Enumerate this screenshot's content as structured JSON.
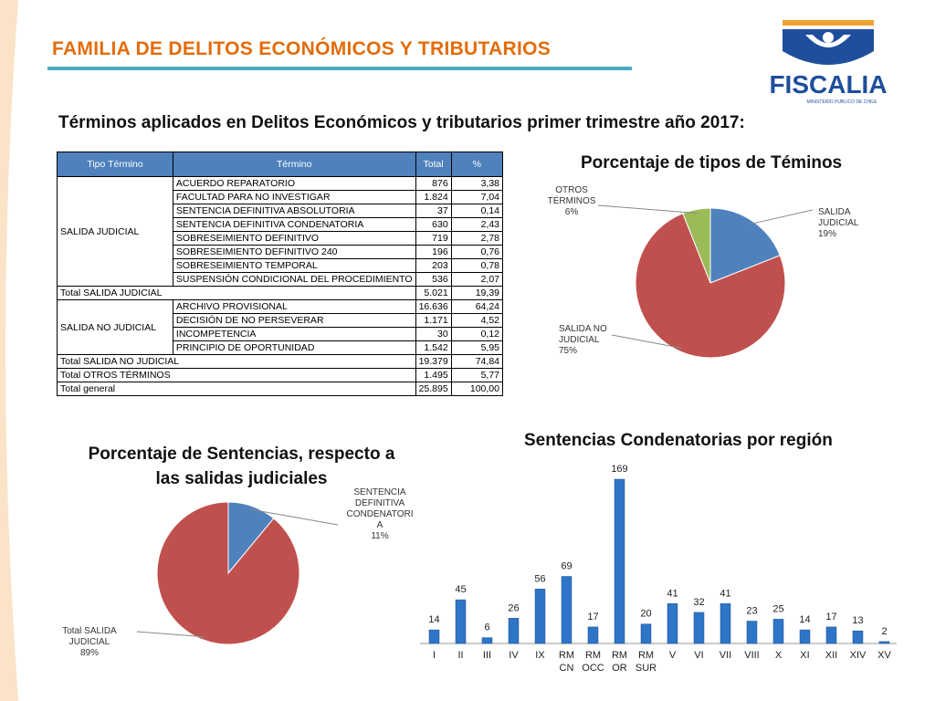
{
  "header": {
    "title": "FAMILIA DE DELITOS ECONÓMICOS Y TRIBUTARIOS",
    "subtitle": "Términos aplicados en Delitos Económicos y tributarios primer trimestre año 2017:"
  },
  "logo": {
    "text": "FISCALIA",
    "subtext": "MINISTERIO PUBLICO DE CHILE",
    "colors": {
      "blue": "#1f4e9c",
      "orange": "#f0a030"
    }
  },
  "table": {
    "headers": [
      "Tipo Término",
      "Término",
      "Total",
      "%"
    ],
    "groups": [
      {
        "name": "SALIDA JUDICIAL",
        "rows": [
          {
            "term": "ACUERDO REPARATORIO",
            "total": "876",
            "pct": "3,38"
          },
          {
            "term": "FACULTAD PARA NO INVESTIGAR",
            "total": "1.824",
            "pct": "7,04"
          },
          {
            "term": "SENTENCIA DEFINITIVA ABSOLUTORIA",
            "total": "37",
            "pct": "0,14"
          },
          {
            "term": "SENTENCIA DEFINITIVA CONDENATORIA",
            "total": "630",
            "pct": "2,43"
          },
          {
            "term": "SOBRESEIMIENTO DEFINITIVO",
            "total": "719",
            "pct": "2,78"
          },
          {
            "term": "SOBRESEIMIENTO DEFINITIVO 240",
            "total": "196",
            "pct": "0,76"
          },
          {
            "term": "SOBRESEIMIENTO TEMPORAL",
            "total": "203",
            "pct": "0,78"
          },
          {
            "term": "SUSPENSIÓN CONDICIONAL DEL PROCEDIMIENTO",
            "total": "536",
            "pct": "2,07"
          }
        ],
        "total_label": "Total SALIDA JUDICIAL",
        "total": "5.021",
        "pct": "19,39"
      },
      {
        "name": "SALIDA NO JUDICIAL",
        "rows": [
          {
            "term": "ARCHIVO PROVISIONAL",
            "total": "16.636",
            "pct": "64,24"
          },
          {
            "term": "DECISIÓN DE NO PERSEVERAR",
            "total": "1.171",
            "pct": "4,52"
          },
          {
            "term": "INCOMPETENCIA",
            "total": "30",
            "pct": "0,12"
          },
          {
            "term": "PRINCIPIO DE OPORTUNIDAD",
            "total": "1.542",
            "pct": "5,95"
          }
        ],
        "total_label": "Total SALIDA NO JUDICIAL",
        "total": "19.379",
        "pct": "74,84"
      }
    ],
    "extra_rows": [
      {
        "label": "Total OTROS TÉRMINOS",
        "total": "1.495",
        "pct": "5,77"
      },
      {
        "label": "Total general",
        "total": "25.895",
        "pct": "100,00"
      }
    ]
  },
  "chart_data": [
    {
      "type": "pie",
      "title": "Porcentaje de tipos de Téminos",
      "slices": [
        {
          "label_lines": [
            "SALIDA",
            "JUDICIAL",
            "19%"
          ],
          "value": 19,
          "color": "#4f81bd"
        },
        {
          "label_lines": [
            "SALIDA NO",
            "JUDICIAL",
            "75%"
          ],
          "value": 75,
          "color": "#c0504d"
        },
        {
          "label_lines": [
            "OTROS",
            "TÉRMINOS",
            "6%"
          ],
          "value": 6,
          "color": "#9bbb59"
        }
      ]
    },
    {
      "type": "pie",
      "title_lines": [
        "Porcentaje de Sentencias, respecto a",
        "las salidas judiciales"
      ],
      "slices": [
        {
          "label_lines": [
            "SENTENCIA",
            "DEFINITIVA",
            "CONDENATORI",
            "A",
            "11%"
          ],
          "value": 11,
          "color": "#4f81bd"
        },
        {
          "label_lines": [
            "Total SALIDA",
            "JUDICIAL",
            "89%"
          ],
          "value": 89,
          "color": "#c0504d"
        }
      ]
    },
    {
      "type": "bar",
      "title": "Sentencias Condenatorias por región",
      "categories": [
        [
          "I"
        ],
        [
          "II"
        ],
        [
          "III"
        ],
        [
          "IV"
        ],
        [
          "IX"
        ],
        [
          "RM",
          "CN"
        ],
        [
          "RM",
          "OCC"
        ],
        [
          "RM",
          "OR"
        ],
        [
          "RM",
          "SUR"
        ],
        [
          "V"
        ],
        [
          "VI"
        ],
        [
          "VII"
        ],
        [
          "VIII"
        ],
        [
          "X"
        ],
        [
          "XI"
        ],
        [
          "XII"
        ],
        [
          "XIV"
        ],
        [
          "XV"
        ]
      ],
      "values": [
        14,
        45,
        6,
        26,
        56,
        69,
        17,
        169,
        20,
        41,
        32,
        41,
        23,
        25,
        14,
        17,
        13,
        2
      ],
      "ylim": [
        0,
        169
      ],
      "color": "#2e75c8"
    }
  ]
}
